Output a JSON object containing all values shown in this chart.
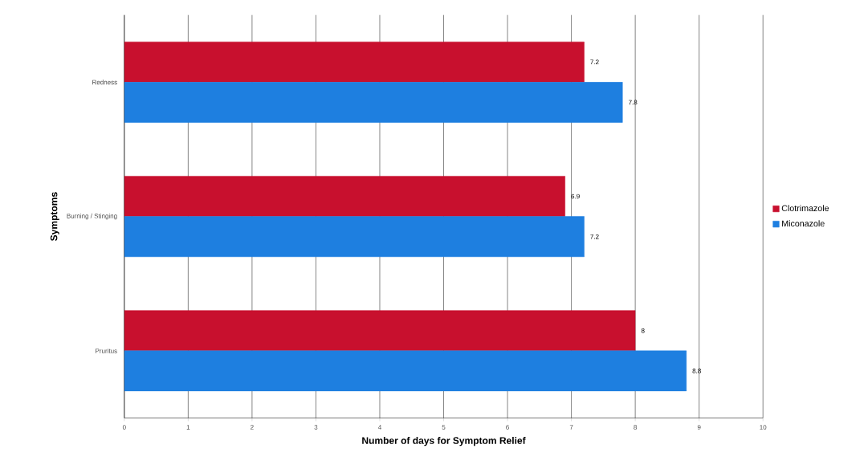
{
  "chart_data": {
    "type": "bar",
    "orientation": "horizontal",
    "xlabel": "Number of days for Symptom Relief",
    "ylabel": "Symptoms",
    "categories": [
      "Redness",
      "Burning / Stinging",
      "Pruritus"
    ],
    "series": [
      {
        "name": "Clotrimazole",
        "color": "#c8102e",
        "values": [
          7.2,
          6.9,
          8
        ]
      },
      {
        "name": "Miconazole",
        "color": "#1e7fe0",
        "values": [
          7.8,
          7.2,
          8.8
        ]
      }
    ],
    "xlim": [
      0,
      10
    ],
    "xticks": [
      0,
      1,
      2,
      3,
      4,
      5,
      6,
      7,
      8,
      9,
      10
    ],
    "grid": "x",
    "legend": "right",
    "data_labels": true
  }
}
